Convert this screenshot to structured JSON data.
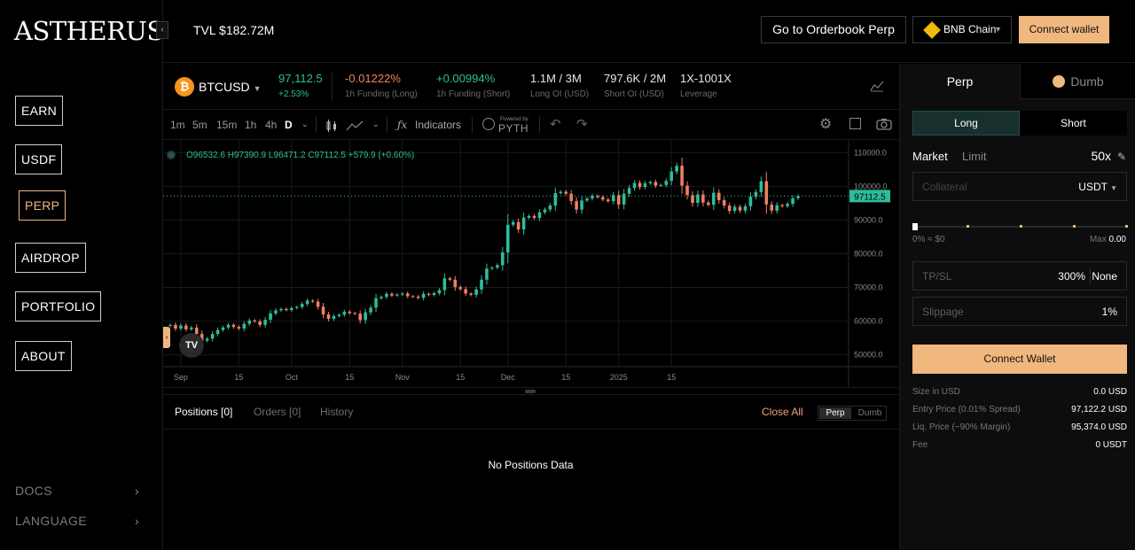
{
  "brand": {
    "logo_text": "ASTHERUS"
  },
  "sidebar": {
    "collapse_glyph": "‹",
    "nav": [
      {
        "label": "EARN"
      },
      {
        "label": "USDF"
      },
      {
        "label": "PERP",
        "active": true
      },
      {
        "label": "AIRDROP"
      },
      {
        "label": "PORTFOLIO"
      },
      {
        "label": "ABOUT"
      }
    ],
    "links": [
      {
        "label": "DOCS"
      },
      {
        "label": "LANGUAGE"
      }
    ]
  },
  "topbar": {
    "tvl": "TVL $182.72M",
    "orderbook_label": "Go to Orderbook Perp",
    "chain_label": "BNB Chain",
    "connect_label": "Connect wallet"
  },
  "ticker": {
    "symbol": "BTCUSD",
    "price": "97,112.5",
    "change": "+2.53%",
    "funding_long": "-0.01222%",
    "funding_long_label": "1h Funding (Long)",
    "funding_short": "+0.00994%",
    "funding_short_label": "1h Funding (Short)",
    "long_oi": "1.1M / 3M",
    "long_oi_label": "Long OI (USD)",
    "short_oi": "797.6K / 2M",
    "short_oi_label": "Short OI (USD)",
    "leverage": "1X-1001X",
    "leverage_label": "Leverage"
  },
  "chart_toolbar": {
    "timeframes": [
      "1m",
      "5m",
      "15m",
      "1h",
      "4h",
      "D"
    ],
    "active_timeframe": "D",
    "indicators_label": "Indicators",
    "powered_by": "Powered by",
    "pyth": "PYTH"
  },
  "chart_legend": {
    "ohlc": "O96532.6  H97390.9  L96471.2  C97112.5  +579.9 (+0.60%)",
    "price_tag": "97112.5"
  },
  "chart_data": {
    "type": "candlestick",
    "symbol": "BTCUSD",
    "interval": "D",
    "x_ticks": [
      "Sep",
      "15",
      "Oct",
      "15",
      "Nov",
      "15",
      "Dec",
      "15",
      "2025",
      "15"
    ],
    "y_ticks": [
      110000.0,
      100000.0,
      90000.0,
      80000.0,
      70000.0,
      60000.0,
      50000.0
    ],
    "y_tick_labels": [
      "110000.0",
      "100000.0",
      "90000.0",
      "80000.0",
      "70000.0",
      "60000.0",
      "50000.0"
    ],
    "ylim": [
      46500,
      113500
    ],
    "last_price": 97112.5,
    "colors": {
      "up": "#2ebd9b",
      "down": "#f08060",
      "grid": "#1a1a1a"
    },
    "closes": [
      58900,
      57800,
      58700,
      57600,
      58100,
      56200,
      54200,
      54800,
      56200,
      57400,
      58100,
      58900,
      58300,
      57800,
      59200,
      60200,
      59900,
      58900,
      60400,
      62300,
      63200,
      63600,
      63300,
      63900,
      64200,
      65100,
      66100,
      65800,
      64300,
      62000,
      60700,
      61500,
      61900,
      62800,
      62400,
      62200,
      60300,
      62600,
      64000,
      66800,
      67200,
      68100,
      67600,
      67900,
      68200,
      67400,
      67300,
      66900,
      68100,
      67800,
      68300,
      69200,
      72700,
      72300,
      70100,
      69500,
      68200,
      67800,
      69400,
      72300,
      75600,
      75900,
      76600,
      80400,
      88600,
      89400,
      87200,
      90700,
      91200,
      90600,
      92300,
      93100,
      94300,
      98000,
      98400,
      97800,
      95600,
      93100,
      95800,
      96400,
      97200,
      96800,
      96100,
      95600,
      97400,
      94600,
      97800,
      99500,
      101000,
      99800,
      100900,
      101300,
      100200,
      100400,
      101600,
      104400,
      106100,
      100200,
      97400,
      95100,
      97600,
      95200,
      94500,
      98100,
      95900,
      94300,
      92700,
      93900,
      92800,
      94100,
      96900,
      98300,
      101500,
      94600,
      92800,
      94400,
      94100,
      94800,
      96500,
      97100
    ]
  },
  "positions": {
    "tabs": [
      "Positions [0]",
      "Orders [0]",
      "History"
    ],
    "close_all": "Close All",
    "toggle": [
      "Perp",
      "Dumb"
    ],
    "empty": "No Positions Data"
  },
  "trade": {
    "tabs": [
      "Perp",
      "Dumb"
    ],
    "long_label": "Long",
    "short_label": "Short",
    "market_label": "Market",
    "limit_label": "Limit",
    "leverage": "50x",
    "collateral_placeholder": "Collateral",
    "collateral_unit": "USDT",
    "slider_min": "0% ≈ $0",
    "slider_max_label": "Max",
    "slider_max_value": "0.00",
    "slider_value_pct": 0,
    "tpsl_label": "TP/SL",
    "tpsl_value": "300%",
    "tpsl_none": "None",
    "slippage_label": "Slippage",
    "slippage_value": "1%",
    "connect_label": "Connect Wallet",
    "info": [
      {
        "label": "Size in USD",
        "value": "0.0 USD"
      },
      {
        "label": "Entry Price (0.01% Spread)",
        "value": "97,122.2 USD"
      },
      {
        "label": "Liq. Price (~90% Margin)",
        "value": "95,374.0 USD"
      },
      {
        "label": "Fee",
        "value": "0 USDT"
      }
    ]
  }
}
